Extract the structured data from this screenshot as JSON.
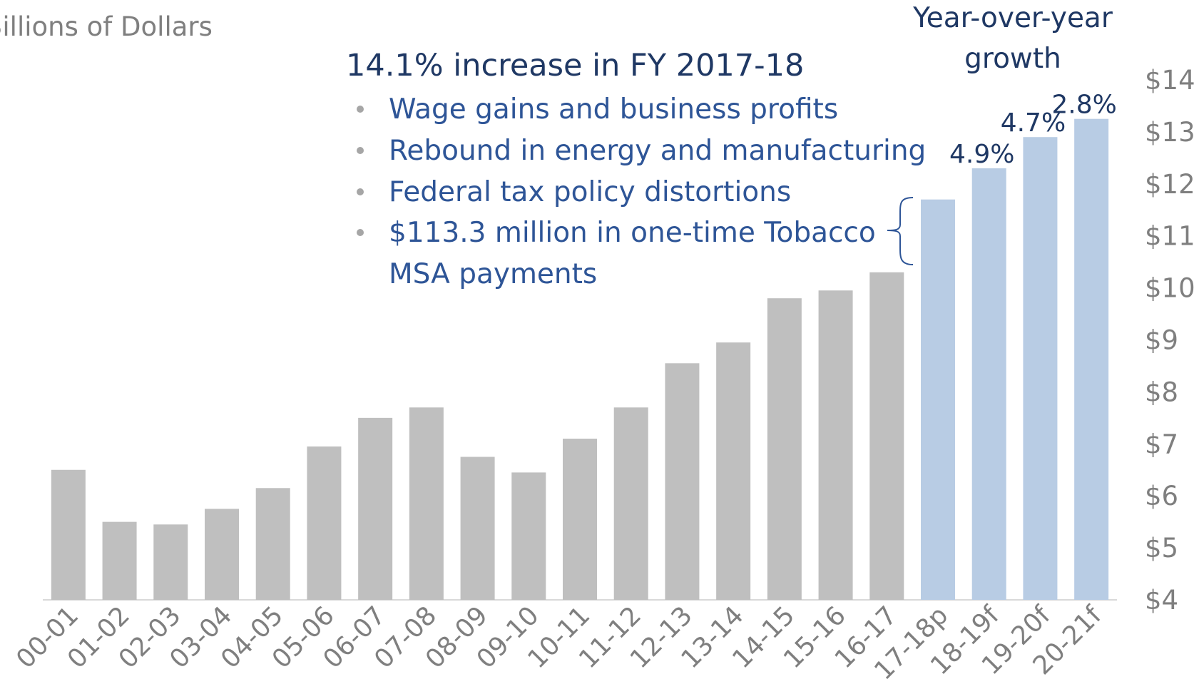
{
  "chart_data": {
    "type": "bar",
    "y_axis_label": "Billions of Dollars",
    "headline": "14.1% increase in FY 2017-18",
    "bullets": [
      "Wage gains and business profits",
      "Rebound in energy and manufacturing",
      "Federal tax policy distortions",
      "$113.3 million in one-time Tobacco",
      "MSA payments"
    ],
    "growth_title": [
      "Year-over-year",
      "growth"
    ],
    "categories": [
      "00-01",
      "01-02",
      "02-03",
      "03-04",
      "04-05",
      "05-06",
      "06-07",
      "07-08",
      "08-09",
      "09-10",
      "10-11",
      "11-12",
      "12-13",
      "13-14",
      "14-15",
      "15-16",
      "16-17",
      "17-18p",
      "18-19f",
      "19-20f",
      "20-21f"
    ],
    "values": [
      6.5,
      5.5,
      5.45,
      5.75,
      6.15,
      6.95,
      7.5,
      7.7,
      6.75,
      6.45,
      7.1,
      7.7,
      8.55,
      8.95,
      9.8,
      9.95,
      10.3,
      11.7,
      12.3,
      12.9,
      13.25
    ],
    "colors": [
      "#bfbfbf",
      "#bfbfbf",
      "#bfbfbf",
      "#bfbfbf",
      "#bfbfbf",
      "#bfbfbf",
      "#bfbfbf",
      "#bfbfbf",
      "#bfbfbf",
      "#bfbfbf",
      "#bfbfbf",
      "#bfbfbf",
      "#bfbfbf",
      "#bfbfbf",
      "#bfbfbf",
      "#bfbfbf",
      "#bfbfbf",
      "#b8cce4",
      "#b8cce4",
      "#b8cce4",
      "#b8cce4"
    ],
    "growth_labels": [
      null,
      null,
      null,
      null,
      null,
      null,
      null,
      null,
      null,
      null,
      null,
      null,
      null,
      null,
      null,
      null,
      null,
      null,
      "4.9%",
      "4.7%",
      "2.8%"
    ],
    "ylim": [
      4,
      14
    ],
    "yticks": [
      {
        "value": 4,
        "label": "$4"
      },
      {
        "value": 5,
        "label": "$5"
      },
      {
        "value": 6,
        "label": "$6"
      },
      {
        "value": 7,
        "label": "$7"
      },
      {
        "value": 8,
        "label": "$8"
      },
      {
        "value": 9,
        "label": "$9"
      },
      {
        "value": 10,
        "label": "$10"
      },
      {
        "value": 11,
        "label": "$11"
      },
      {
        "value": 12,
        "label": "$12"
      },
      {
        "value": 13,
        "label": "$13"
      },
      {
        "value": 14,
        "label": "$14"
      }
    ],
    "grid": false
  }
}
